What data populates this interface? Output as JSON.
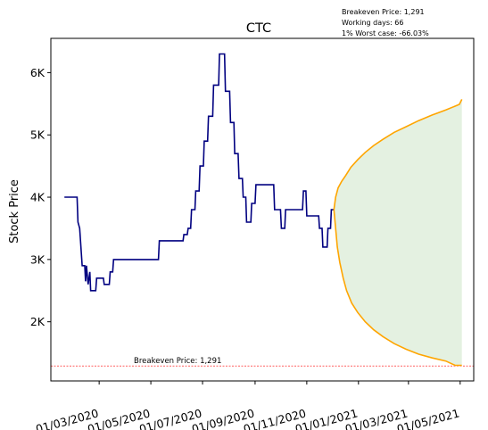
{
  "chart_data": {
    "type": "line",
    "title": "CTC",
    "xlabel": "",
    "ylabel": "Stock Price",
    "x_tick_labels": [
      "01/03/2020",
      "01/05/2020",
      "01/07/2020",
      "01/09/2020",
      "01/11/2020",
      "01/01/2021",
      "01/03/2021",
      "01/05/2021"
    ],
    "x_ticks": [
      "2020-03-01",
      "2020-05-01",
      "2020-07-01",
      "2020-09-01",
      "2020-11-01",
      "2021-01-01",
      "2021-03-01",
      "2021-05-01"
    ],
    "y_tick_labels": [
      "2K",
      "3K",
      "4K",
      "5K",
      "6K"
    ],
    "y_ticks": [
      2000,
      3000,
      4000,
      5000,
      6000
    ],
    "xlim": [
      "2020-01-04",
      "2021-05-17"
    ],
    "ylim": [
      1050,
      6550
    ],
    "info_lines": [
      "Breakeven Price: 1,291",
      "Working days: 66",
      "1% Worst case: -66.03%"
    ],
    "breakeven": {
      "value": 1291,
      "label": "Breakeven Price: 1,291",
      "color": "#ff0000"
    },
    "colors": {
      "history": "#000080",
      "band": "#ffa500",
      "fill": "#e4f1e1"
    },
    "history": [
      [
        "2020-01-20",
        4000
      ],
      [
        "2020-02-04",
        4000
      ],
      [
        "2020-02-05",
        3600
      ],
      [
        "2020-02-07",
        3500
      ],
      [
        "2020-02-10",
        2900
      ],
      [
        "2020-02-13",
        2900
      ],
      [
        "2020-02-14",
        2650
      ],
      [
        "2020-02-15",
        2900
      ],
      [
        "2020-02-17",
        2600
      ],
      [
        "2020-02-19",
        2800
      ],
      [
        "2020-02-20",
        2500
      ],
      [
        "2020-02-26",
        2500
      ],
      [
        "2020-02-27",
        2700
      ],
      [
        "2020-03-06",
        2700
      ],
      [
        "2020-03-07",
        2600
      ],
      [
        "2020-03-13",
        2600
      ],
      [
        "2020-03-14",
        2800
      ],
      [
        "2020-03-17",
        2800
      ],
      [
        "2020-03-18",
        3000
      ],
      [
        "2020-05-10",
        3000
      ],
      [
        "2020-05-11",
        3300
      ],
      [
        "2020-06-08",
        3300
      ],
      [
        "2020-06-09",
        3400
      ],
      [
        "2020-06-13",
        3400
      ],
      [
        "2020-06-14",
        3500
      ],
      [
        "2020-06-17",
        3500
      ],
      [
        "2020-06-18",
        3800
      ],
      [
        "2020-06-22",
        3800
      ],
      [
        "2020-06-23",
        4100
      ],
      [
        "2020-06-27",
        4100
      ],
      [
        "2020-06-28",
        4500
      ],
      [
        "2020-07-02",
        4500
      ],
      [
        "2020-07-03",
        4900
      ],
      [
        "2020-07-07",
        4900
      ],
      [
        "2020-07-08",
        5300
      ],
      [
        "2020-07-13",
        5300
      ],
      [
        "2020-07-14",
        5800
      ],
      [
        "2020-07-20",
        5800
      ],
      [
        "2020-07-21",
        6300
      ],
      [
        "2020-07-27",
        6300
      ],
      [
        "2020-07-28",
        5700
      ],
      [
        "2020-08-02",
        5700
      ],
      [
        "2020-08-03",
        5200
      ],
      [
        "2020-08-07",
        5200
      ],
      [
        "2020-08-08",
        4700
      ],
      [
        "2020-08-12",
        4700
      ],
      [
        "2020-08-13",
        4300
      ],
      [
        "2020-08-17",
        4300
      ],
      [
        "2020-08-18",
        4000
      ],
      [
        "2020-08-21",
        4000
      ],
      [
        "2020-08-22",
        3600
      ],
      [
        "2020-08-27",
        3600
      ],
      [
        "2020-08-28",
        3900
      ],
      [
        "2020-09-01",
        3900
      ],
      [
        "2020-09-02",
        4200
      ],
      [
        "2020-09-23",
        4200
      ],
      [
        "2020-09-24",
        3800
      ],
      [
        "2020-10-01",
        3800
      ],
      [
        "2020-10-02",
        3500
      ],
      [
        "2020-10-06",
        3500
      ],
      [
        "2020-10-07",
        3800
      ],
      [
        "2020-10-27",
        3800
      ],
      [
        "2020-10-28",
        4100
      ],
      [
        "2020-10-31",
        4100
      ],
      [
        "2020-11-01",
        3700
      ],
      [
        "2020-11-15",
        3700
      ],
      [
        "2020-11-16",
        3500
      ],
      [
        "2020-11-19",
        3500
      ],
      [
        "2020-11-20",
        3200
      ],
      [
        "2020-11-25",
        3200
      ],
      [
        "2020-11-26",
        3500
      ],
      [
        "2020-11-29",
        3500
      ],
      [
        "2020-11-30",
        3800
      ],
      [
        "2020-12-03",
        3800
      ]
    ],
    "upper_band": [
      [
        "2020-12-03",
        3800
      ],
      [
        "2020-12-05",
        4000
      ],
      [
        "2020-12-08",
        4150
      ],
      [
        "2020-12-12",
        4250
      ],
      [
        "2020-12-17",
        4350
      ],
      [
        "2020-12-23",
        4480
      ],
      [
        "2020-12-31",
        4600
      ],
      [
        "2021-01-09",
        4720
      ],
      [
        "2021-01-19",
        4830
      ],
      [
        "2021-01-30",
        4930
      ],
      [
        "2021-02-12",
        5040
      ],
      [
        "2021-02-26",
        5130
      ],
      [
        "2021-03-13",
        5230
      ],
      [
        "2021-03-29",
        5320
      ],
      [
        "2021-04-14",
        5400
      ],
      [
        "2021-04-30",
        5490
      ],
      [
        "2021-05-03",
        5570
      ]
    ],
    "lower_band": [
      [
        "2020-12-03",
        3800
      ],
      [
        "2020-12-05",
        3500
      ],
      [
        "2020-12-07",
        3200
      ],
      [
        "2020-12-10",
        2950
      ],
      [
        "2020-12-14",
        2700
      ],
      [
        "2020-12-18",
        2500
      ],
      [
        "2020-12-24",
        2300
      ],
      [
        "2020-12-31",
        2150
      ],
      [
        "2021-01-09",
        2000
      ],
      [
        "2021-01-19",
        1870
      ],
      [
        "2021-01-30",
        1760
      ],
      [
        "2021-02-12",
        1650
      ],
      [
        "2021-02-26",
        1560
      ],
      [
        "2021-03-13",
        1480
      ],
      [
        "2021-03-29",
        1420
      ],
      [
        "2021-04-14",
        1370
      ],
      [
        "2021-04-25",
        1300
      ],
      [
        "2021-05-03",
        1300
      ]
    ]
  }
}
